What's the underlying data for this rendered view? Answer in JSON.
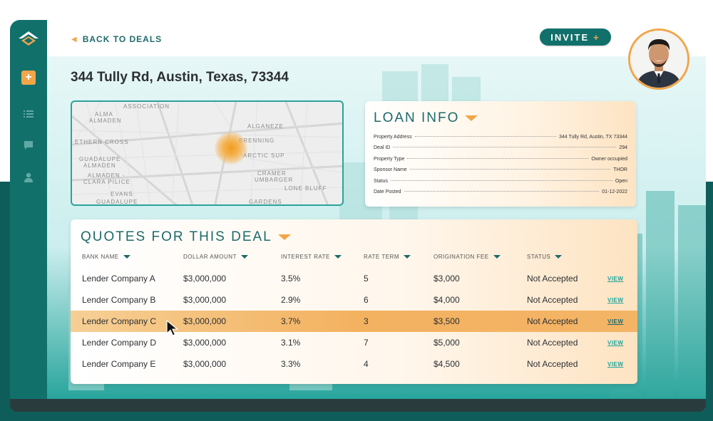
{
  "nav": {
    "back_label": "BACK TO DEALS",
    "invite_label": "INVITE",
    "invite_icon": "+"
  },
  "sidebar": {
    "items": [
      {
        "name": "add",
        "icon": "+"
      },
      {
        "name": "list",
        "icon": "list-icon"
      },
      {
        "name": "messages",
        "icon": "chat-icon"
      },
      {
        "name": "user",
        "icon": "user-icon"
      }
    ]
  },
  "property": {
    "address": "344 Tully Rd, Austin, Texas, 73344"
  },
  "map": {
    "labels": [
      "ASSOCIATION",
      "ALMA",
      "ALMADEN",
      "ETHERN CROSS",
      "GUADALUPE",
      "ALMADEN",
      "ALMADEN -",
      "CLARA PILICE",
      "EVANS",
      "GUADALUPE",
      "ALGANEZE",
      "BRENNING",
      "ARCTIC SUP",
      "CRAMER",
      "UMBARGER",
      "LONE BLUFF",
      "GARDENS"
    ]
  },
  "loan_info": {
    "title": "LOAN INFO",
    "rows": [
      {
        "label": "Property Address",
        "value": "344 Tully Rd, Austin, TX 73344"
      },
      {
        "label": "Deal ID",
        "value": "294"
      },
      {
        "label": "Property Type",
        "value": "Owner occupied"
      },
      {
        "label": "Sponsor Name",
        "value": "THOR"
      },
      {
        "label": "Status",
        "value": "Open"
      },
      {
        "label": "Date Posted",
        "value": "01-12-2022"
      }
    ]
  },
  "quotes": {
    "title": "QUOTES FOR THIS DEAL",
    "columns": [
      "BANK NAME",
      "DOLLAR AMOUNT",
      "INTEREST RATE",
      "RATE TERM",
      "ORIGINATION FEE",
      "STATUS"
    ],
    "view_label": "VIEW",
    "rows": [
      {
        "bank": "Lender Company A",
        "amount": "$3,000,000",
        "rate": "3.5%",
        "term": "5",
        "fee": "$3,000",
        "status": "Not Accepted"
      },
      {
        "bank": "Lender Company B",
        "amount": "$3,000,000",
        "rate": "2.9%",
        "term": "6",
        "fee": "$4,000",
        "status": "Not Accepted"
      },
      {
        "bank": "Lender Company C",
        "amount": "$3,000,000",
        "rate": "3.7%",
        "term": "3",
        "fee": "$3,500",
        "status": "Not Accepted"
      },
      {
        "bank": "Lender Company D",
        "amount": "$3,000,000",
        "rate": "3.1%",
        "term": "7",
        "fee": "$5,000",
        "status": "Not Accepted"
      },
      {
        "bank": "Lender Company E",
        "amount": "$3,000,000",
        "rate": "3.3%",
        "term": "4",
        "fee": "$4,500",
        "status": "Not Accepted"
      }
    ],
    "highlighted_row": 2
  },
  "colors": {
    "teal": "#12706b",
    "accent": "#f1a64a",
    "link": "#21a49b",
    "text": "#2c2f33"
  }
}
